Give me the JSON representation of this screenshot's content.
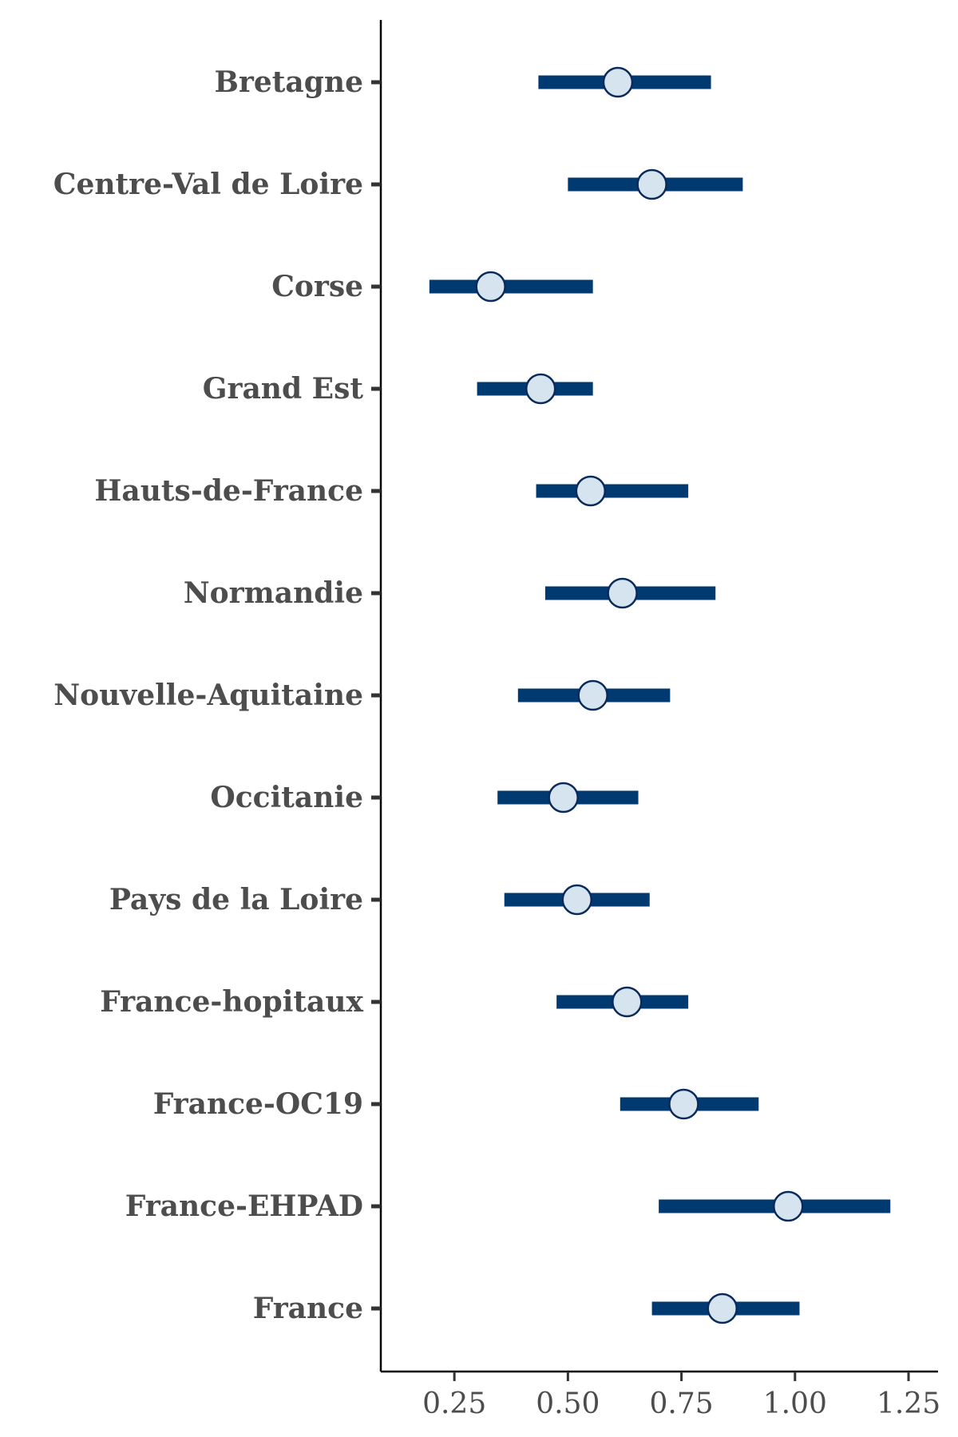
{
  "chart_data": {
    "type": "forest",
    "title": "",
    "xlabel": "",
    "ylabel": "",
    "xlim": [
      0.088,
      1.315
    ],
    "x_ticks": [
      0.25,
      0.5,
      0.75,
      1.0,
      1.25
    ],
    "x_tick_labels": [
      "0.25",
      "0.50",
      "0.75",
      "1.00",
      "1.25"
    ],
    "grid": false,
    "colors": {
      "interval": "#003a70",
      "point_fill": "#d6e4ef",
      "point_stroke": "#0a2a5c",
      "axis": "#000000",
      "text": "#4d4d4d"
    },
    "categories": [
      "Bretagne",
      "Centre-Val de Loire",
      "Corse",
      "Grand Est",
      "Hauts-de-France",
      "Normandie",
      "Nouvelle-Aquitaine",
      "Occitanie",
      "Pays de la Loire",
      "France-hopitaux",
      "France-OC19",
      "France-EHPAD",
      "France"
    ],
    "estimates": [
      0.61,
      0.685,
      0.33,
      0.44,
      0.55,
      0.62,
      0.555,
      0.49,
      0.52,
      0.63,
      0.755,
      0.985,
      0.84
    ],
    "lower": [
      0.435,
      0.5,
      0.195,
      0.3,
      0.43,
      0.45,
      0.39,
      0.345,
      0.36,
      0.475,
      0.615,
      0.7,
      0.685
    ],
    "upper": [
      0.815,
      0.885,
      0.555,
      0.555,
      0.765,
      0.825,
      0.725,
      0.655,
      0.68,
      0.765,
      0.92,
      1.21,
      1.01
    ]
  }
}
